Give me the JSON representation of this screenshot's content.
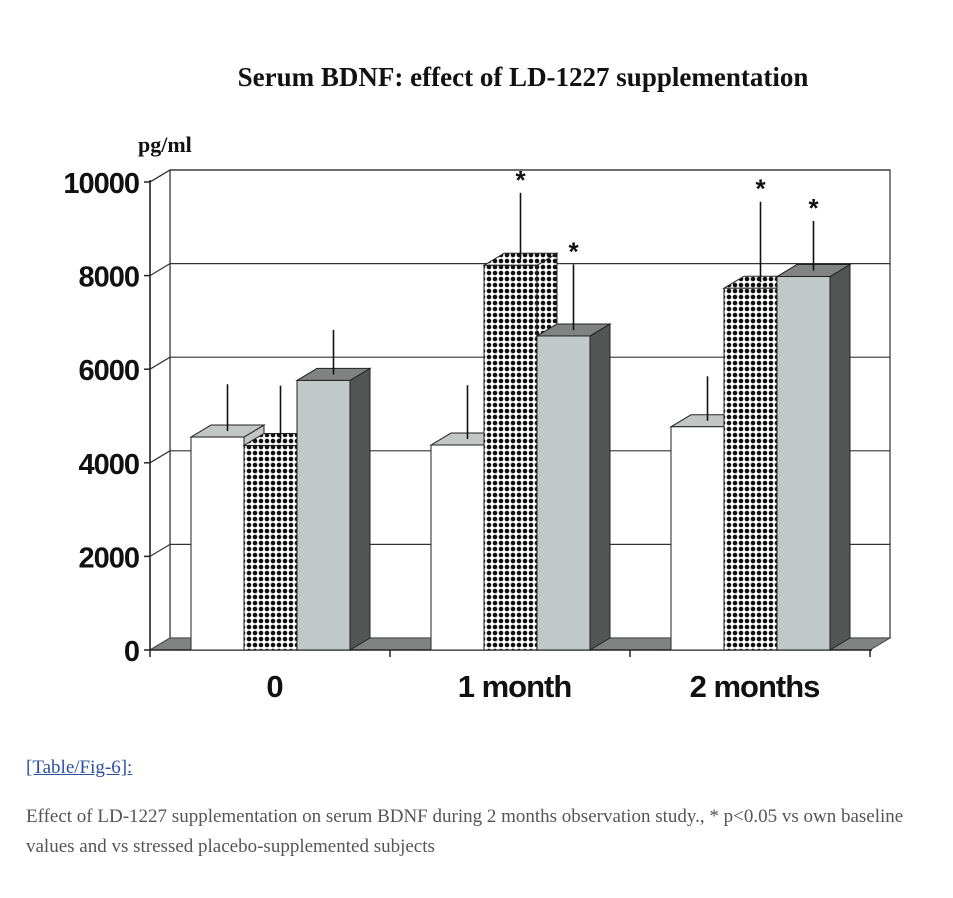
{
  "chart_data": {
    "type": "bar",
    "title": "Serum BDNF: effect of LD-1227 supplementation",
    "ylabel": "pg/ml",
    "xlabel": "",
    "ylim": [
      0,
      10000
    ],
    "yticks": [
      0,
      2000,
      4000,
      6000,
      8000,
      10000
    ],
    "categories": [
      "0",
      "1 month",
      "2 months"
    ],
    "grid": true,
    "series": [
      {
        "values": [
          4550,
          4380,
          4770
        ],
        "errors": [
          1000,
          1150,
          950
        ],
        "significant": [
          false,
          false,
          false
        ],
        "color": "#ffffff",
        "side_color": "#c4c4c4",
        "top_color": "#c2c7c6",
        "pattern": "none"
      },
      {
        "values": [
          4370,
          8220,
          7730
        ],
        "errors": [
          1150,
          1420,
          1720
        ],
        "significant": [
          false,
          true,
          true
        ],
        "color": "#ffffff",
        "side_color": "#c4c4c4",
        "top_color": "#c2c7c6",
        "pattern": "dots"
      },
      {
        "values": [
          5760,
          6710,
          7980
        ],
        "errors": [
          950,
          1400,
          1060
        ],
        "significant": [
          false,
          true,
          true
        ],
        "color": "#c1c8c8",
        "side_color": "#545656",
        "top_color": "#7f8483",
        "pattern": "none"
      }
    ],
    "significance_marker": "*"
  },
  "caption": {
    "link_text": "[Table/Fig-6]:",
    "text": "Effect of LD-1227 supplementation on serum BDNF during 2 months observation study., * p<0.05 vs own baseline values and vs stressed placebo-supplemented subjects"
  },
  "colors": {
    "floor": "#7f8483",
    "gridline": "#333333",
    "link": "#2d4fa0",
    "caption_text": "#555555"
  }
}
